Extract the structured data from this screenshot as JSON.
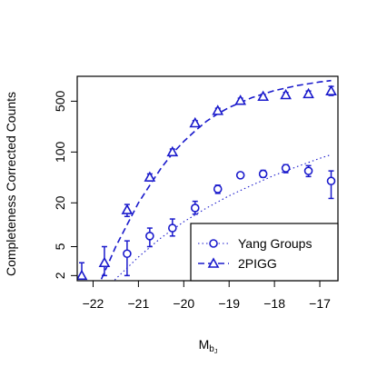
{
  "chart_data": {
    "type": "scatter",
    "title": "",
    "xlabel_main": "M",
    "xlabel_sub": "b",
    "xlabel_subsub": "J",
    "ylabel": "Completeness Corrected Counts",
    "x_ticks": [
      -22,
      -21,
      -20,
      -19,
      -18,
      -17
    ],
    "x_tick_labels": [
      "−22",
      "−21",
      "−20",
      "−19",
      "−18",
      "−17"
    ],
    "y_ticks": [
      2,
      5,
      20,
      100,
      500
    ],
    "y_tick_labels": [
      "2",
      "5",
      "20",
      "100",
      "500"
    ],
    "y_scale": "log",
    "xlim": [
      -22.35,
      -16.6
    ],
    "ylim": [
      1.7,
      1100
    ],
    "legend_position": "bottom-right",
    "color": "#1a1acc",
    "series": [
      {
        "name": "Yang Groups",
        "marker": "circle",
        "line": "dotted",
        "x": [
          -21.25,
          -20.75,
          -20.25,
          -19.75,
          -19.25,
          -18.75,
          -18.25,
          -17.75,
          -17.25,
          -16.75
        ],
        "y": [
          4,
          7,
          9,
          17,
          31,
          48,
          50,
          60,
          55,
          40
        ],
        "y_low": [
          2,
          5,
          7,
          14,
          27,
          44,
          45,
          52,
          46,
          23
        ],
        "y_high": [
          6,
          9,
          12,
          21,
          35,
          52,
          56,
          67,
          65,
          55
        ],
        "fit_x": [
          -22.0,
          -21.5,
          -21.0,
          -20.5,
          -20.0,
          -19.5,
          -19.0,
          -18.5,
          -18.0,
          -17.5,
          -17.0,
          -16.75
        ],
        "fit_y": [
          0.8,
          1.8,
          3.6,
          6.6,
          11,
          17,
          25,
          35,
          48,
          63,
          82,
          92
        ]
      },
      {
        "name": "2PIGG",
        "marker": "triangle",
        "line": "dashed",
        "x": [
          -22.25,
          -21.75,
          -21.25,
          -20.75,
          -20.25,
          -19.75,
          -19.25,
          -18.75,
          -18.25,
          -17.75,
          -17.25,
          -16.75
        ],
        "y": [
          2,
          3,
          16,
          45,
          100,
          250,
          370,
          510,
          580,
          610,
          630,
          690
        ],
        "y_low": [
          1.8,
          2,
          13,
          40,
          90,
          230,
          340,
          470,
          540,
          560,
          570,
          600
        ],
        "y_high": [
          3,
          5,
          19,
          50,
          110,
          270,
          400,
          550,
          620,
          660,
          690,
          800
        ],
        "fit_x": [
          -22.0,
          -21.75,
          -21.5,
          -21.25,
          -21.0,
          -20.75,
          -20.5,
          -20.25,
          -20.0,
          -19.75,
          -19.5,
          -19.25,
          -19.0,
          -18.5,
          -18.0,
          -17.5,
          -17.0,
          -16.75
        ],
        "fit_y": [
          1.0,
          2.2,
          5,
          10,
          20,
          35,
          60,
          95,
          140,
          195,
          265,
          335,
          410,
          560,
          700,
          820,
          920,
          960
        ]
      }
    ]
  }
}
